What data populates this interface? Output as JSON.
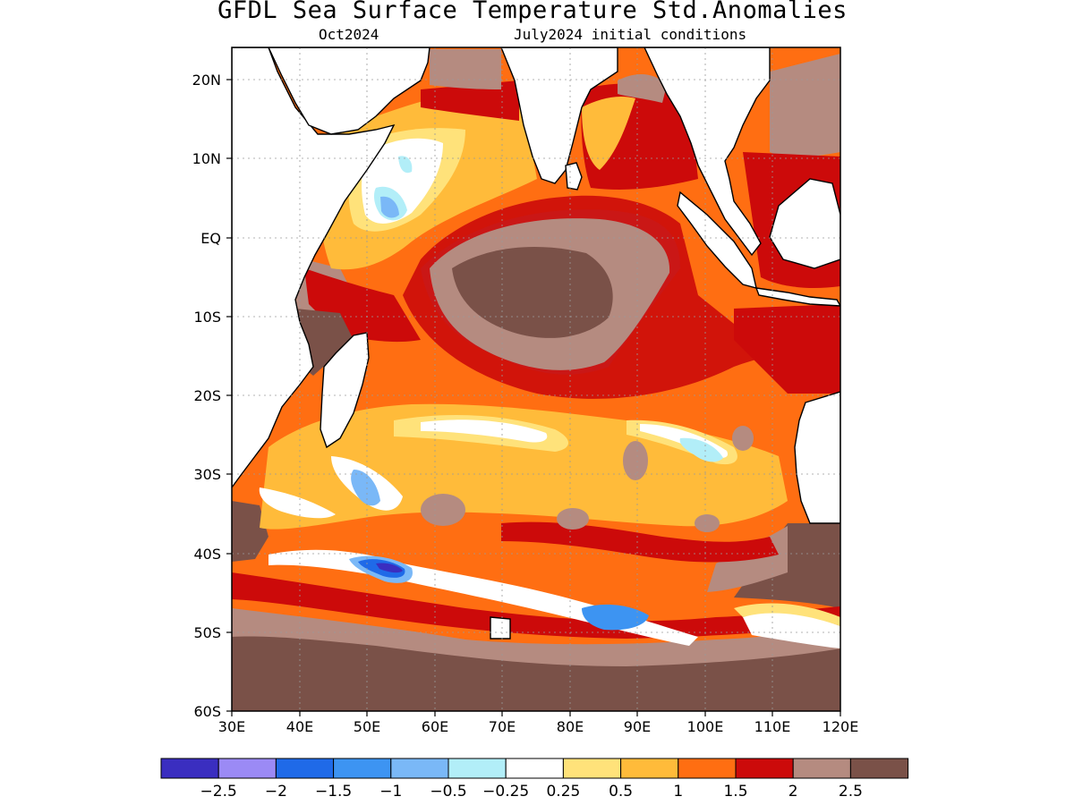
{
  "title": "GFDL Sea Surface Temperature Std.Anomalies",
  "subtitle_left": "Oct2024",
  "subtitle_right": "July2024 initial conditions",
  "lat_labels": [
    "20N",
    "10N",
    "EQ",
    "10S",
    "20S",
    "30S",
    "40S",
    "50S",
    "60S"
  ],
  "lon_labels": [
    "30E",
    "40E",
    "50E",
    "60E",
    "70E",
    "80E",
    "90E",
    "100E",
    "110E",
    "120E"
  ],
  "colorbar": {
    "colors": [
      "#3a2ec0",
      "#9b8af5",
      "#1f6ae8",
      "#3d94f2",
      "#7ab8f7",
      "#b2eef8",
      "#ffffff",
      "#ffe27a",
      "#ffbb3a",
      "#ff6e12",
      "#cc0a0a",
      "#b58b80",
      "#7a5148"
    ],
    "labels": [
      "−2.5",
      "−2",
      "−1.5",
      "−1",
      "−0.5",
      "−0.25",
      "0.25",
      "0.5",
      "1",
      "1.5",
      "2",
      "2.5"
    ]
  },
  "colors": {
    "background": "#ffffff",
    "land": "#ffffff",
    "frame": "#000000",
    "brown_dark": "#7a5148",
    "brown_light": "#b58b80",
    "red": "#cc0a0a",
    "orange": "#ff6e12",
    "amber": "#ffbb3a",
    "yellow": "#ffe27a",
    "lightcyan": "#b2eef8",
    "skyblue": "#7ab8f7",
    "midblue": "#3d94f2",
    "blue": "#1f6ae8",
    "lavender": "#9b8af5",
    "violet": "#3a2ec0"
  }
}
